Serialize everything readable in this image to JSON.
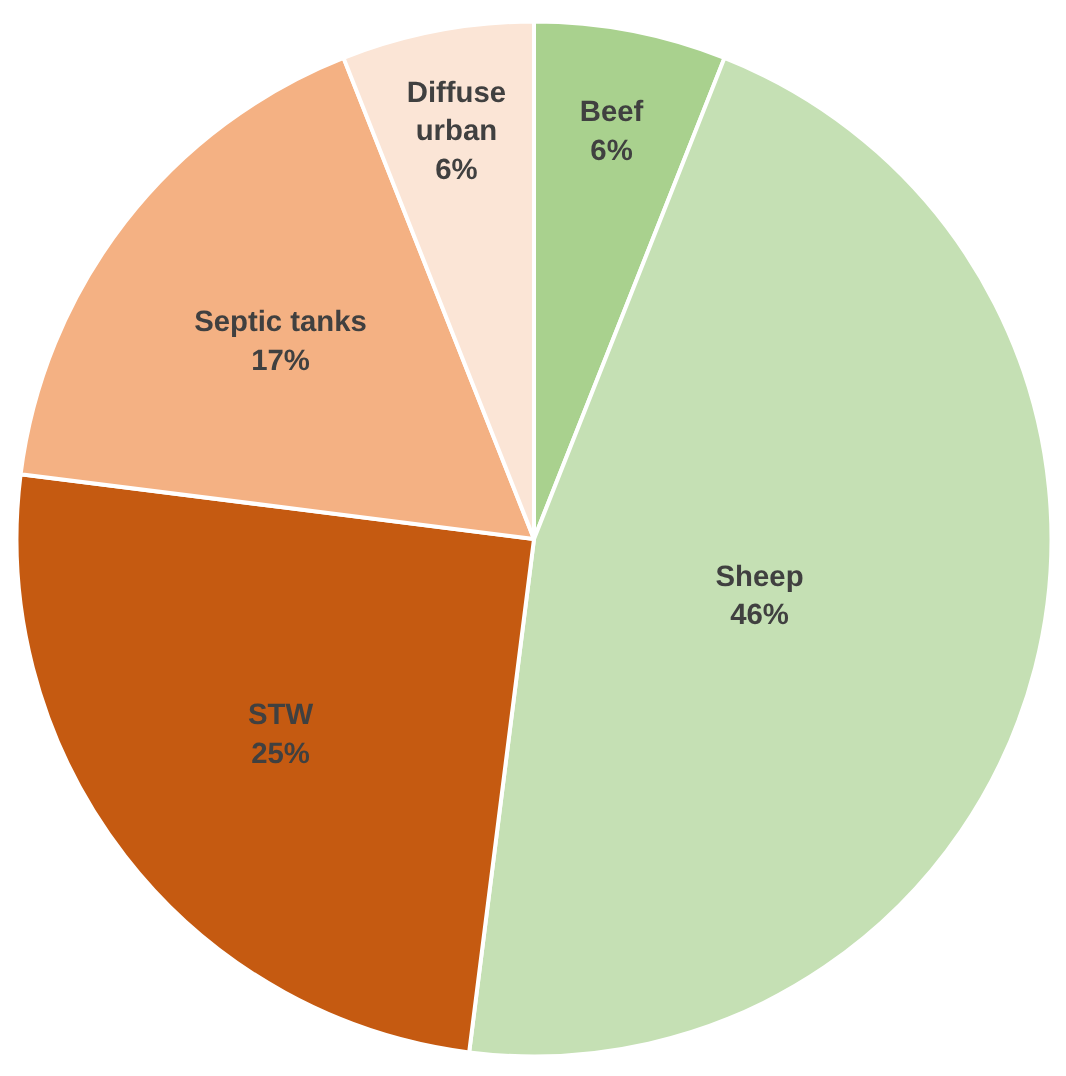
{
  "chart_data": {
    "type": "pie",
    "categories": [
      "Beef",
      "Sheep",
      "STW",
      "Septic tanks",
      "Diffuse urban"
    ],
    "values": [
      6,
      46,
      25,
      17,
      6
    ],
    "colors": [
      "#a9d18e",
      "#c5e0b4",
      "#c55a11",
      "#f4b183",
      "#fbe5d6"
    ],
    "value_labels": [
      "6%",
      "46%",
      "25%",
      "17%",
      "6%"
    ],
    "legend": false
  }
}
